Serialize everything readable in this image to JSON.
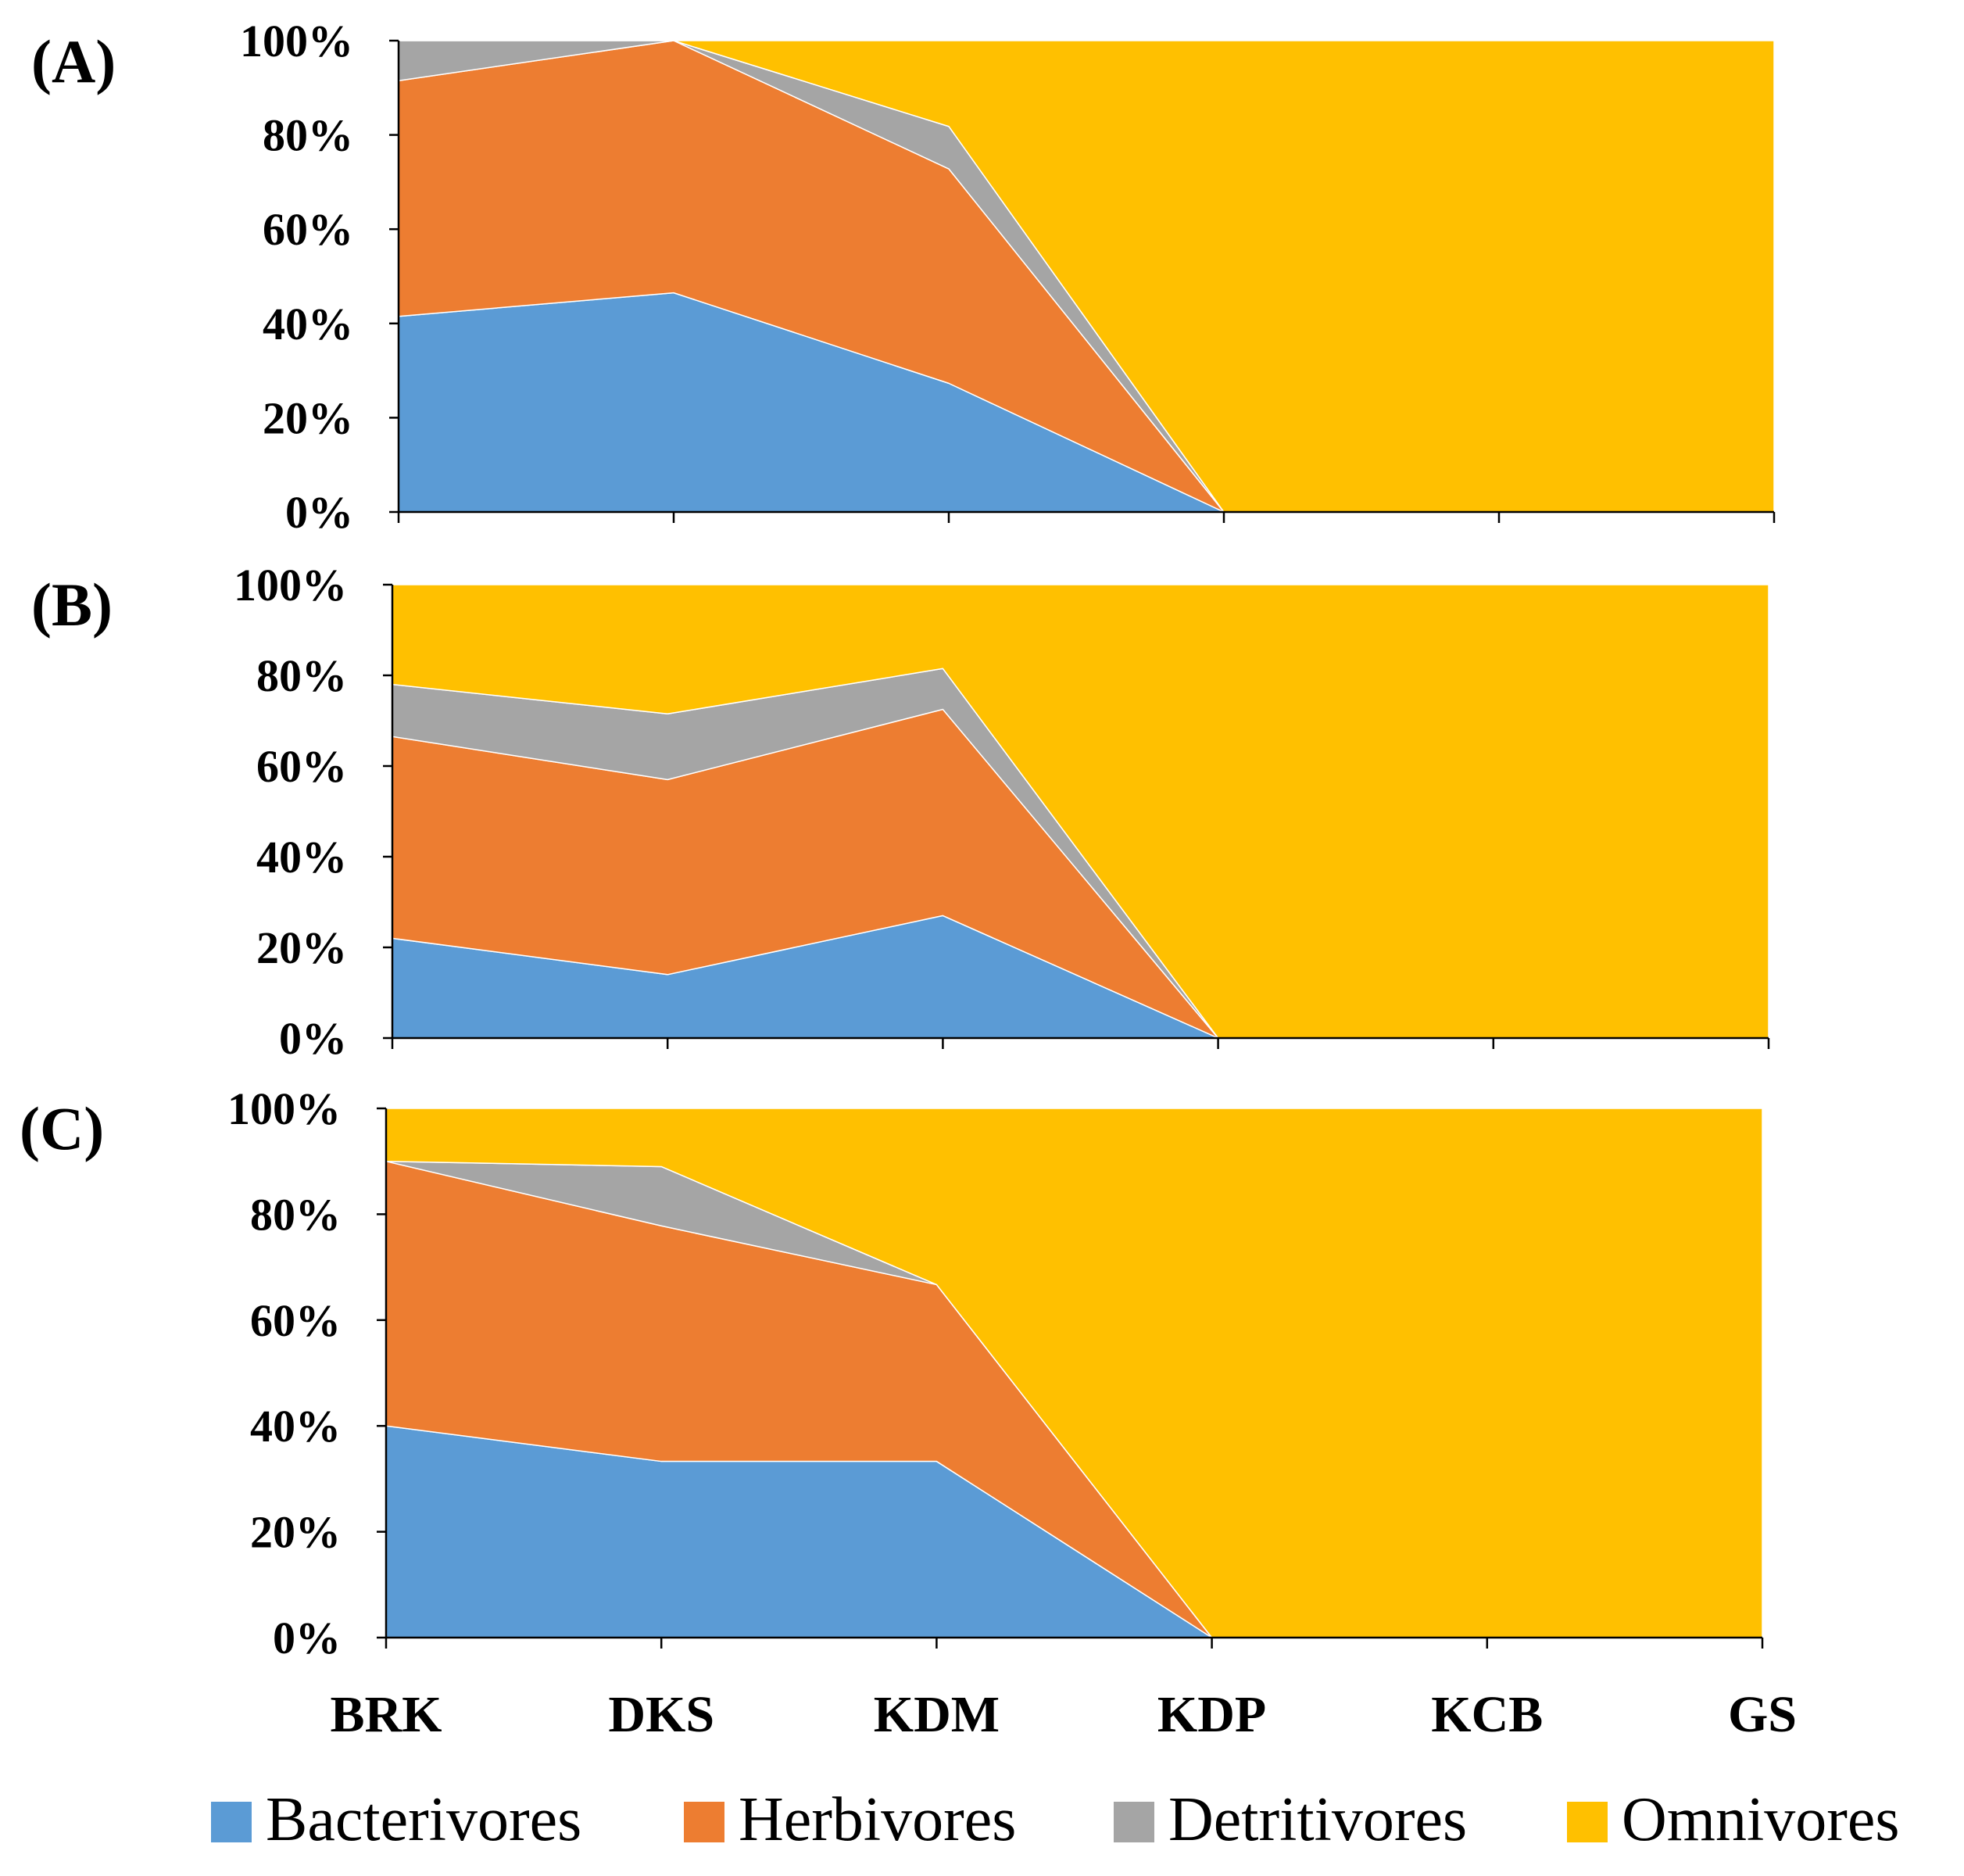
{
  "chart_data": {
    "type": "area",
    "stacked": "percent",
    "categories": [
      "BRK",
      "DKS",
      "KDM",
      "KDP",
      "KCB",
      "GS"
    ],
    "series_names": [
      "Bacterivores",
      "Herbivores",
      "Detritivores",
      "Omnivores"
    ],
    "y_ticks": [
      "0%",
      "20%",
      "40%",
      "60%",
      "80%",
      "100%"
    ],
    "ylim": [
      0,
      100
    ],
    "grid": false,
    "legend_position": "bottom",
    "colors": {
      "Bacterivores": "#5b9bd5",
      "Herbivores": "#ed7d31",
      "Detritivores": "#a5a5a5",
      "Omnivores": "#ffc000",
      "axis": "#000000"
    },
    "panels": [
      {
        "label": "(A)",
        "series": [
          {
            "name": "Bacterivores",
            "values": [
              41.5,
              46.5,
              27.3,
              0,
              0,
              0
            ]
          },
          {
            "name": "Herbivores",
            "values": [
              50,
              53.5,
              45.5,
              0,
              0,
              0
            ]
          },
          {
            "name": "Detritivores",
            "values": [
              8.5,
              0,
              9,
              0,
              0,
              0
            ]
          },
          {
            "name": "Omnivores",
            "values": [
              0,
              0,
              18.2,
              100,
              100,
              100
            ]
          }
        ]
      },
      {
        "label": "(B)",
        "series": [
          {
            "name": "Bacterivores",
            "values": [
              22,
              14,
              27,
              0,
              0,
              0
            ]
          },
          {
            "name": "Herbivores",
            "values": [
              44.5,
              43,
              45.5,
              0,
              0,
              0
            ]
          },
          {
            "name": "Detritivores",
            "values": [
              11.5,
              14.5,
              9,
              0,
              0,
              0
            ]
          },
          {
            "name": "Omnivores",
            "values": [
              22,
              28.5,
              18.5,
              100,
              100,
              100
            ]
          }
        ]
      },
      {
        "label": "(C)",
        "series": [
          {
            "name": "Bacterivores",
            "values": [
              40,
              33.3,
              33.3,
              0,
              0,
              0
            ]
          },
          {
            "name": "Herbivores",
            "values": [
              50,
              44.5,
              33.4,
              0,
              0,
              0
            ]
          },
          {
            "name": "Detritivores",
            "values": [
              0,
              11.2,
              0,
              0,
              0,
              0
            ]
          },
          {
            "name": "Omnivores",
            "values": [
              10,
              11,
              33.3,
              100,
              100,
              100
            ]
          }
        ]
      }
    ]
  }
}
